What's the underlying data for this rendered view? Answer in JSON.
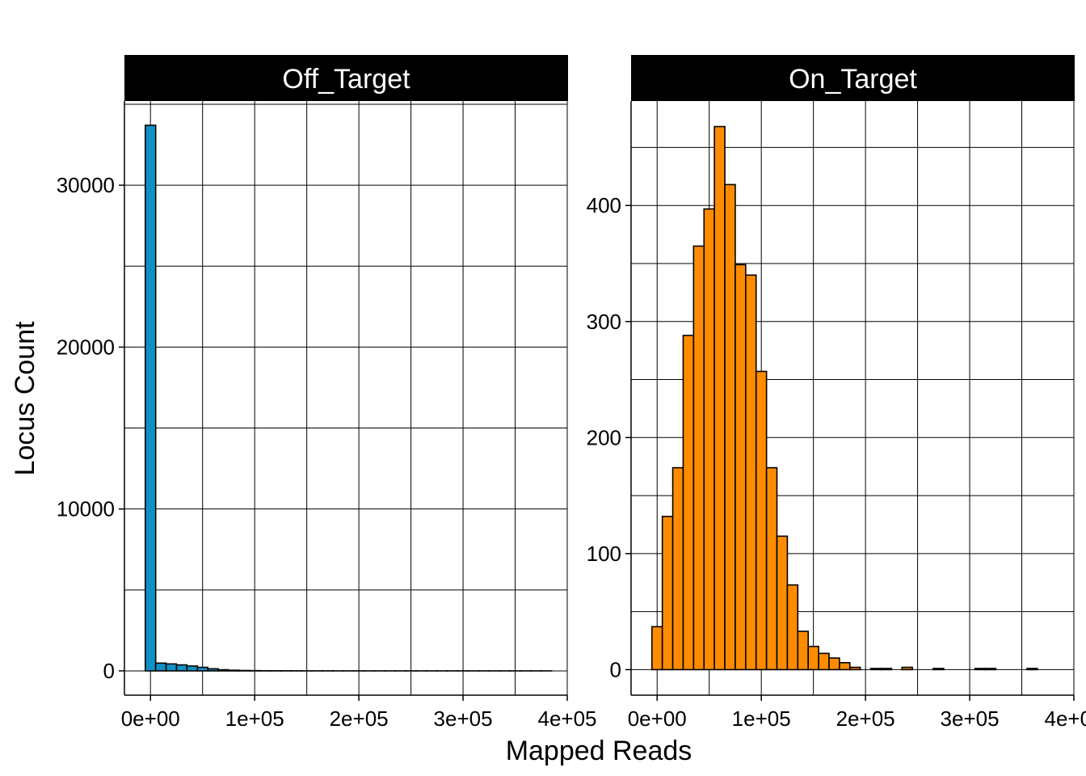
{
  "chart_data": {
    "type": "bar",
    "subtype": "histogram-facets",
    "xlabel": "Mapped Reads",
    "ylabel": "Locus Count",
    "bin_width": 10000,
    "grid": true,
    "facets": [
      {
        "name": "Off_Target",
        "fill": "#0e91c8",
        "xlim": [
          -25000,
          400000
        ],
        "ylim": [
          -1500,
          35200
        ],
        "x_ticks": [
          0,
          100000,
          200000,
          300000,
          400000
        ],
        "x_tick_labels": [
          "0e+00",
          "1e+05",
          "2e+05",
          "3e+05",
          "4e+05"
        ],
        "y_ticks": [
          0,
          10000,
          20000,
          30000
        ],
        "y_tick_labels": [
          "0",
          "10000",
          "20000",
          "30000"
        ],
        "bins": [
          {
            "x": 0,
            "count": 33700
          },
          {
            "x": 10000,
            "count": 480
          },
          {
            "x": 20000,
            "count": 430
          },
          {
            "x": 30000,
            "count": 370
          },
          {
            "x": 40000,
            "count": 300
          },
          {
            "x": 50000,
            "count": 220
          },
          {
            "x": 60000,
            "count": 130
          },
          {
            "x": 70000,
            "count": 70
          },
          {
            "x": 80000,
            "count": 40
          },
          {
            "x": 90000,
            "count": 25
          },
          {
            "x": 100000,
            "count": 15
          },
          {
            "x": 110000,
            "count": 10
          },
          {
            "x": 120000,
            "count": 8
          },
          {
            "x": 130000,
            "count": 6
          },
          {
            "x": 140000,
            "count": 5
          },
          {
            "x": 150000,
            "count": 4
          },
          {
            "x": 160000,
            "count": 3
          },
          {
            "x": 170000,
            "count": 3
          },
          {
            "x": 180000,
            "count": 2
          },
          {
            "x": 190000,
            "count": 2
          },
          {
            "x": 200000,
            "count": 2
          },
          {
            "x": 210000,
            "count": 1
          },
          {
            "x": 220000,
            "count": 1
          },
          {
            "x": 230000,
            "count": 1
          },
          {
            "x": 240000,
            "count": 1
          },
          {
            "x": 250000,
            "count": 1
          },
          {
            "x": 260000,
            "count": 1
          },
          {
            "x": 270000,
            "count": 1
          },
          {
            "x": 280000,
            "count": 1
          },
          {
            "x": 290000,
            "count": 1
          },
          {
            "x": 300000,
            "count": 1
          },
          {
            "x": 310000,
            "count": 1
          },
          {
            "x": 320000,
            "count": 1
          },
          {
            "x": 330000,
            "count": 1
          },
          {
            "x": 340000,
            "count": 1
          },
          {
            "x": 350000,
            "count": 1
          },
          {
            "x": 360000,
            "count": 1
          },
          {
            "x": 370000,
            "count": 1
          },
          {
            "x": 380000,
            "count": 1
          }
        ]
      },
      {
        "name": "On_Target",
        "fill": "#ff8c00",
        "xlim": [
          -25000,
          400000
        ],
        "ylim": [
          -22,
          490
        ],
        "x_ticks": [
          0,
          100000,
          200000,
          300000,
          400000
        ],
        "x_tick_labels": [
          "0e+00",
          "1e+05",
          "2e+05",
          "3e+05",
          "4e+05"
        ],
        "y_ticks": [
          0,
          100,
          200,
          300,
          400
        ],
        "y_tick_labels": [
          "0",
          "100",
          "200",
          "300",
          "400"
        ],
        "bins": [
          {
            "x": 0,
            "count": 37
          },
          {
            "x": 10000,
            "count": 132
          },
          {
            "x": 20000,
            "count": 174
          },
          {
            "x": 30000,
            "count": 288
          },
          {
            "x": 40000,
            "count": 365
          },
          {
            "x": 50000,
            "count": 397
          },
          {
            "x": 60000,
            "count": 468
          },
          {
            "x": 70000,
            "count": 418
          },
          {
            "x": 80000,
            "count": 349
          },
          {
            "x": 90000,
            "count": 340
          },
          {
            "x": 100000,
            "count": 257
          },
          {
            "x": 110000,
            "count": 174
          },
          {
            "x": 120000,
            "count": 115
          },
          {
            "x": 130000,
            "count": 73
          },
          {
            "x": 140000,
            "count": 33
          },
          {
            "x": 150000,
            "count": 20
          },
          {
            "x": 160000,
            "count": 14
          },
          {
            "x": 170000,
            "count": 10
          },
          {
            "x": 180000,
            "count": 6
          },
          {
            "x": 190000,
            "count": 2
          },
          {
            "x": 200000,
            "count": 0
          },
          {
            "x": 210000,
            "count": 1
          },
          {
            "x": 220000,
            "count": 1
          },
          {
            "x": 230000,
            "count": 0
          },
          {
            "x": 240000,
            "count": 2
          },
          {
            "x": 250000,
            "count": 0
          },
          {
            "x": 260000,
            "count": 0
          },
          {
            "x": 270000,
            "count": 1
          },
          {
            "x": 280000,
            "count": 0
          },
          {
            "x": 290000,
            "count": 0
          },
          {
            "x": 300000,
            "count": 0
          },
          {
            "x": 310000,
            "count": 1
          },
          {
            "x": 320000,
            "count": 1
          },
          {
            "x": 330000,
            "count": 0
          },
          {
            "x": 340000,
            "count": 0
          },
          {
            "x": 350000,
            "count": 0
          },
          {
            "x": 360000,
            "count": 1
          },
          {
            "x": 370000,
            "count": 0
          },
          {
            "x": 380000,
            "count": 0
          }
        ]
      }
    ]
  }
}
